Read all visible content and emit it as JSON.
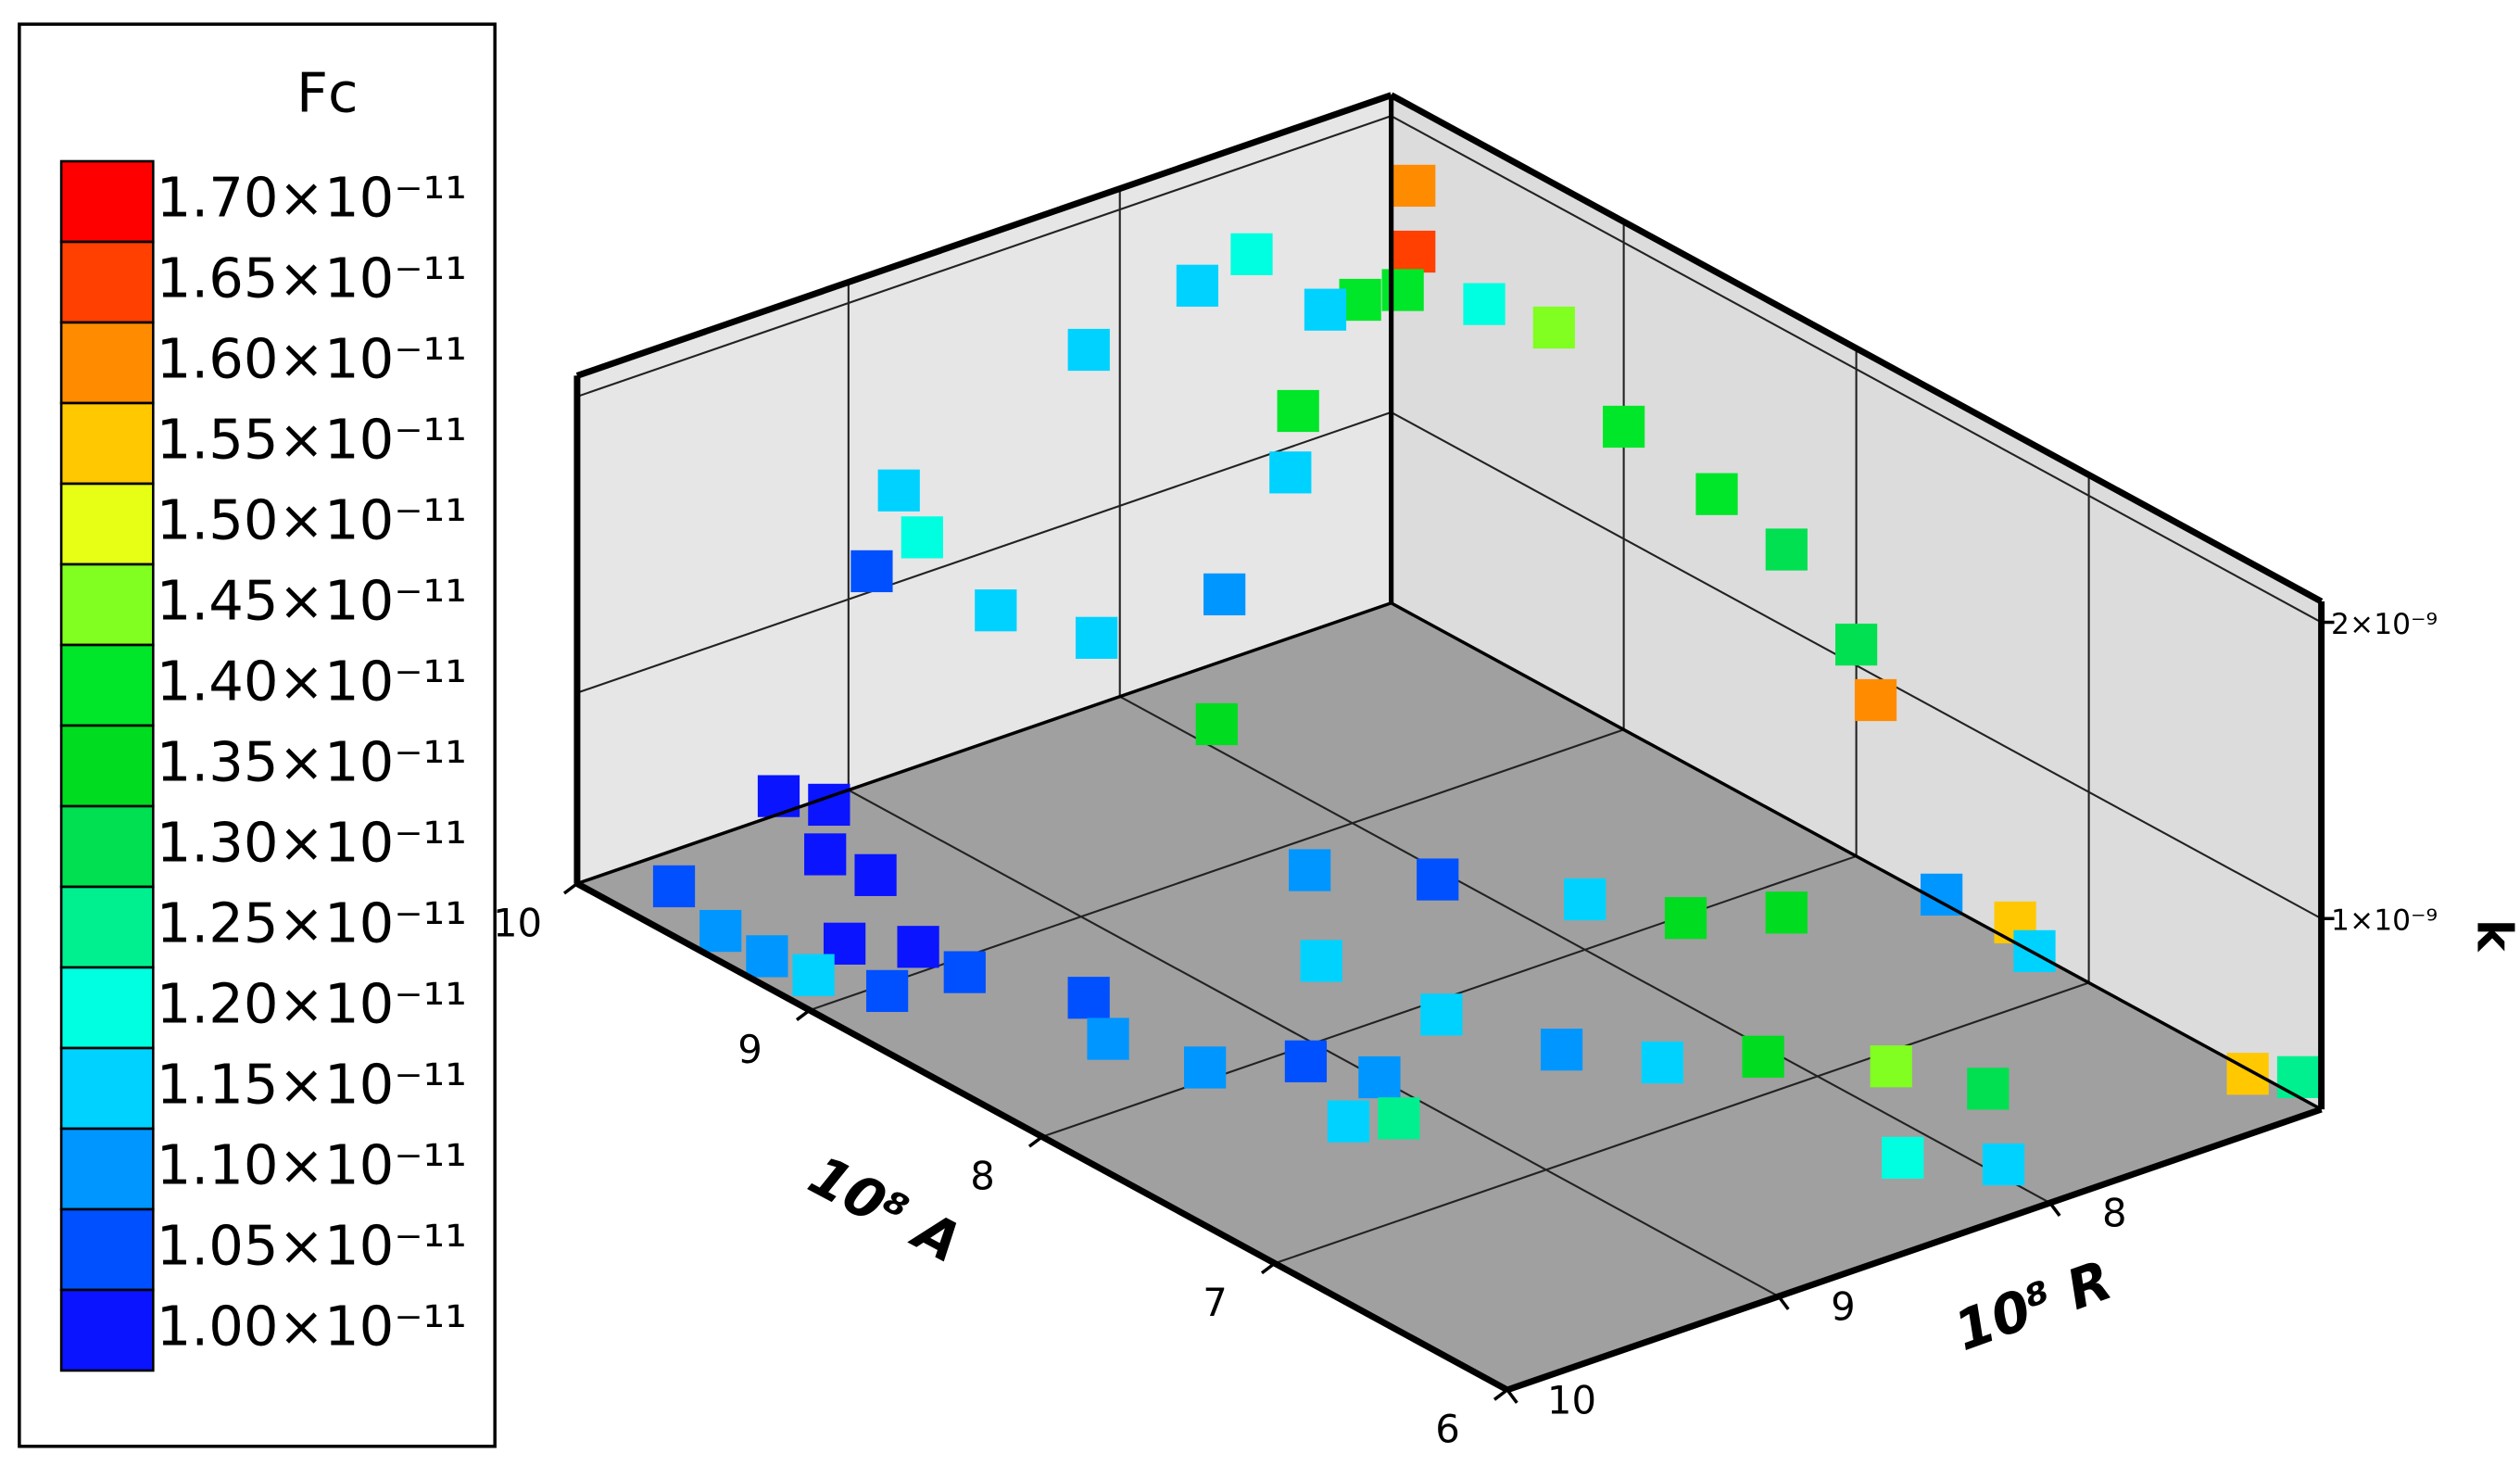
{
  "chart_data": {
    "type": "scatter3d",
    "x_label": "10⁸ A",
    "y_label": "10⁸ R",
    "z_label": "k",
    "xlim": [
      6,
      10
    ],
    "ylim": [
      7,
      10
    ],
    "zlim": [
      6.4e-10,
      2.1e-09
    ],
    "z_log": true,
    "xticks": [
      6,
      7,
      8,
      9,
      10
    ],
    "yticks": [
      8,
      9,
      10
    ],
    "zticks": [
      {
        "value": 1e-09,
        "label": "1×10⁻⁹"
      },
      {
        "value": 2e-09,
        "label": "2×10⁻⁹"
      }
    ],
    "grid": true,
    "colorbar": {
      "title": "Fc",
      "levels": [
        {
          "value": 1.7e-11,
          "label": "1.70×10⁻¹¹"
        },
        {
          "value": 1.65e-11,
          "label": "1.65×10⁻¹¹"
        },
        {
          "value": 1.6e-11,
          "label": "1.60×10⁻¹¹"
        },
        {
          "value": 1.55e-11,
          "label": "1.55×10⁻¹¹"
        },
        {
          "value": 1.5e-11,
          "label": "1.50×10⁻¹¹"
        },
        {
          "value": 1.45e-11,
          "label": "1.45×10⁻¹¹"
        },
        {
          "value": 1.4e-11,
          "label": "1.40×10⁻¹¹"
        },
        {
          "value": 1.35e-11,
          "label": "1.35×10⁻¹¹"
        },
        {
          "value": 1.3e-11,
          "label": "1.30×10⁻¹¹"
        },
        {
          "value": 1.25e-11,
          "label": "1.25×10⁻¹¹"
        },
        {
          "value": 1.2e-11,
          "label": "1.20×10⁻¹¹"
        },
        {
          "value": 1.15e-11,
          "label": "1.15×10⁻¹¹"
        },
        {
          "value": 1.1e-11,
          "label": "1.10×10⁻¹¹"
        },
        {
          "value": 1.05e-11,
          "label": "1.05×10⁻¹¹"
        },
        {
          "value": 1e-11,
          "label": "1.00×10⁻¹¹"
        }
      ],
      "colors": [
        "#ff0000",
        "#ff4000",
        "#ff8c00",
        "#ffc800",
        "#e6ff14",
        "#80ff20",
        "#00e628",
        "#00dc20",
        "#00e050",
        "#00f090",
        "#00ffe0",
        "#00d2ff",
        "#0096ff",
        "#0050ff",
        "#0a14ff"
      ]
    },
    "x": [
      9.6,
      9.5,
      9.4,
      9.3,
      9.7,
      9.2,
      9.0,
      8.9,
      9.5,
      9.3,
      9.1,
      8.8,
      8.5,
      8.3,
      8.0,
      7.8,
      7.6,
      7.5,
      7.4,
      8.2,
      7.8,
      7.4,
      7.2,
      7.0,
      6.8,
      6.5,
      6.4,
      6.2,
      6.2,
      6.1,
      8.6,
      8.4,
      8.0,
      7.8,
      7.6,
      7.4,
      7.2,
      7.0,
      9.0,
      9.4,
      9.6,
      9.2,
      9.8,
      9.9,
      9.5,
      9.7,
      9.9,
      9.9,
      9.9,
      9.9,
      9.9,
      9.9,
      9.7,
      9.6,
      9.9,
      9.0,
      8.6,
      8.3,
      8.0,
      7.8,
      9.6,
      9.3
    ],
    "y": [
      9.6,
      9.5,
      9.6,
      9.5,
      9.9,
      9.7,
      9.6,
      9.8,
      9.9,
      9.9,
      9.9,
      9.6,
      9.4,
      9.5,
      9.4,
      9.2,
      9.1,
      9.3,
      9.2,
      8.8,
      8.7,
      8.6,
      8.4,
      8.2,
      7.9,
      7.8,
      8.2,
      8.0,
      7.1,
      7.0,
      8.5,
      8.2,
      8.0,
      7.8,
      7.6,
      7.2,
      7.1,
      7.2,
      8.5,
      8.6,
      8.8,
      8.3,
      8.9,
      9.0,
      7.8,
      7.6,
      7.2,
      7.0,
      7.0,
      8.2,
      7.8,
      7.6,
      7.5,
      7.3,
      8.9,
      7.0,
      7.0,
      7.0,
      7.0,
      7.1,
      7.0,
      7.0
    ],
    "z": [
      8.1e-10,
      8e-10,
      7.5e-10,
      7.2e-10,
      6.8e-10,
      6.6e-10,
      6.8e-10,
      6.6e-10,
      6.5e-10,
      6.5e-10,
      6.6e-10,
      6.8e-10,
      6.7e-10,
      6.6e-10,
      6.6e-10,
      6.8e-10,
      6.8e-10,
      6.6e-10,
      6.7e-10,
      7e-10,
      6.8e-10,
      6.9e-10,
      6.8e-10,
      7e-10,
      6.8e-10,
      6.9e-10,
      6.6e-10,
      6.6e-10,
      6.7e-10,
      6.7e-10,
      7.2e-10,
      7e-10,
      7.2e-10,
      7e-10,
      7.2e-10,
      7.3e-10,
      7.1e-10,
      7.2e-10,
      9e-10,
      1e-09,
      1.05e-09,
      1.1e-09,
      1.2e-09,
      1.1e-09,
      1.2e-09,
      1.25e-09,
      1.4e-09,
      1.5e-09,
      1.75e-09,
      1.55e-09,
      1.65e-09,
      1.7e-09,
      1.55e-09,
      1.6e-09,
      1.3e-09,
      1.3e-09,
      1.25e-09,
      1.2e-09,
      1.05e-09,
      1e-09,
      1.45e-09,
      1.5e-09
    ],
    "fc": [
      1.01e-11,
      1.02e-11,
      1e-11,
      1.01e-11,
      1.04e-11,
      1.02e-11,
      1e-11,
      1.03e-11,
      1.1e-11,
      1.12e-11,
      1.15e-11,
      1.06e-11,
      1.03e-11,
      1.08e-11,
      1.12e-11,
      1.06e-11,
      1.1e-11,
      1.17e-11,
      1.26e-11,
      1.15e-11,
      1.14e-11,
      1.08e-11,
      1.15e-11,
      1.35e-11,
      1.47e-11,
      1.31e-11,
      1.2e-11,
      1.14e-11,
      1.53e-11,
      1.27e-11,
      1.09e-11,
      1.06e-11,
      1.17e-11,
      1.34e-11,
      1.36e-11,
      1.12e-11,
      1.56e-11,
      1.14e-11,
      1.34e-11,
      1.14e-11,
      1.13e-11,
      1.09e-11,
      1.2e-11,
      1.07e-11,
      1.16e-11,
      1.41e-11,
      1.38e-11,
      1.67e-11,
      1.62e-11,
      1.17e-11,
      1.15e-11,
      1.18e-11,
      1.16e-11,
      1.38e-11,
      1.15e-11,
      1.38e-11,
      1.4e-11,
      1.28e-11,
      1.3e-11,
      1.59e-11,
      1.22e-11,
      1.46e-11
    ]
  }
}
